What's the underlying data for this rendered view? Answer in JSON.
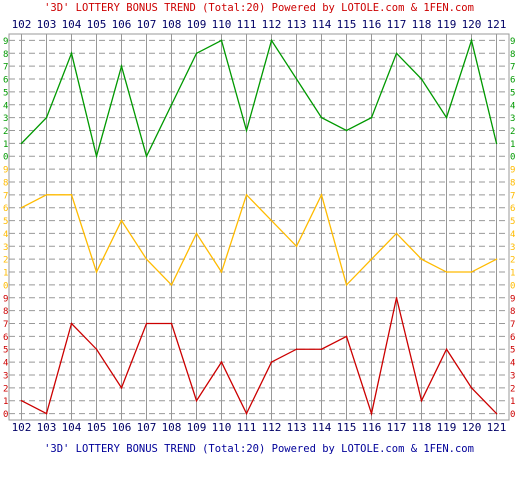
{
  "title": "'3D' LOTTERY BONUS TREND (Total:20)  Powered by LOTOLE.com & 1FEN.com",
  "colors": {
    "title": "#cc0000",
    "footer": "#000099",
    "series": [
      "#009900",
      "#ffbb00",
      "#cc0000"
    ],
    "grid": "#999999",
    "axis_text": "#000066"
  },
  "chart_data": {
    "type": "line",
    "title": "'3D' LOTTERY BONUS TREND (Total:20)  Powered by LOTOLE.com & 1FEN.com",
    "footer": "'3D' LOTTERY BONUS TREND (Total:20)  Powered by LOTOLE.com & 1FEN.com",
    "categories": [
      "102",
      "103",
      "104",
      "105",
      "106",
      "107",
      "108",
      "109",
      "110",
      "111",
      "112",
      "113",
      "114",
      "115",
      "116",
      "117",
      "118",
      "119",
      "120",
      "121"
    ],
    "y_ticks": [
      "0",
      "1",
      "2",
      "3",
      "4",
      "5",
      "6",
      "7",
      "8",
      "9"
    ],
    "ylim": [
      0,
      9
    ],
    "grid": true,
    "series": [
      {
        "color": "#009900",
        "values": [
          1,
          3,
          8,
          0,
          7,
          0,
          4,
          8,
          9,
          2,
          9,
          6,
          3,
          2,
          3,
          8,
          6,
          3,
          9,
          1
        ]
      },
      {
        "color": "#ffbb00",
        "values": [
          6,
          7,
          7,
          1,
          5,
          2,
          0,
          4,
          1,
          7,
          5,
          3,
          7,
          0,
          2,
          4,
          2,
          1,
          1,
          2
        ]
      },
      {
        "color": "#cc0000",
        "values": [
          1,
          0,
          7,
          5,
          2,
          7,
          7,
          1,
          4,
          0,
          4,
          5,
          5,
          6,
          0,
          9,
          1,
          5,
          2,
          0
        ]
      }
    ]
  }
}
